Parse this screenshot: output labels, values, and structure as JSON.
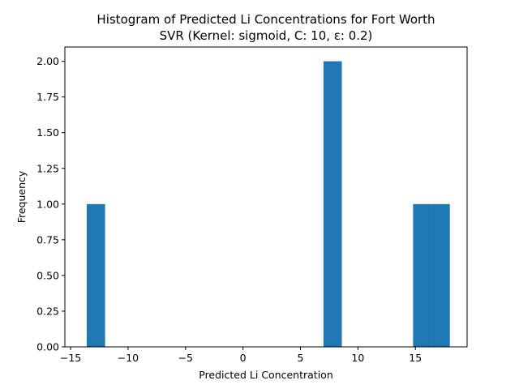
{
  "chart_data": {
    "type": "bar",
    "title": "Histogram of Predicted Li Concentrations for Fort Worth",
    "subtitle": "SVR (Kernel: sigmoid, C: 10, ε: 0.2)",
    "xlabel": "Predicted Li Concentration",
    "ylabel": "Frequency",
    "xlim": [
      -15.5,
      19.5
    ],
    "ylim": [
      0,
      2.1
    ],
    "xticks": [
      -15,
      -10,
      -5,
      0,
      5,
      10,
      15
    ],
    "xtick_labels": [
      "−15",
      "−10",
      "−5",
      "0",
      "5",
      "10",
      "15"
    ],
    "yticks": [
      0,
      0.25,
      0.5,
      0.75,
      1.0,
      1.25,
      1.5,
      1.75,
      2.0
    ],
    "ytick_labels": [
      "0.00",
      "0.25",
      "0.50",
      "0.75",
      "1.00",
      "1.25",
      "1.50",
      "1.75",
      "2.00"
    ],
    "bar_color": "#1f77b4",
    "bins": [
      {
        "x0": -13.6,
        "x1": -12.0,
        "count": 1
      },
      {
        "x0": 7.0,
        "x1": 8.6,
        "count": 2
      },
      {
        "x0": 14.8,
        "x1": 16.4,
        "count": 1
      },
      {
        "x0": 16.4,
        "x1": 18.0,
        "count": 1
      }
    ],
    "grid": false
  }
}
